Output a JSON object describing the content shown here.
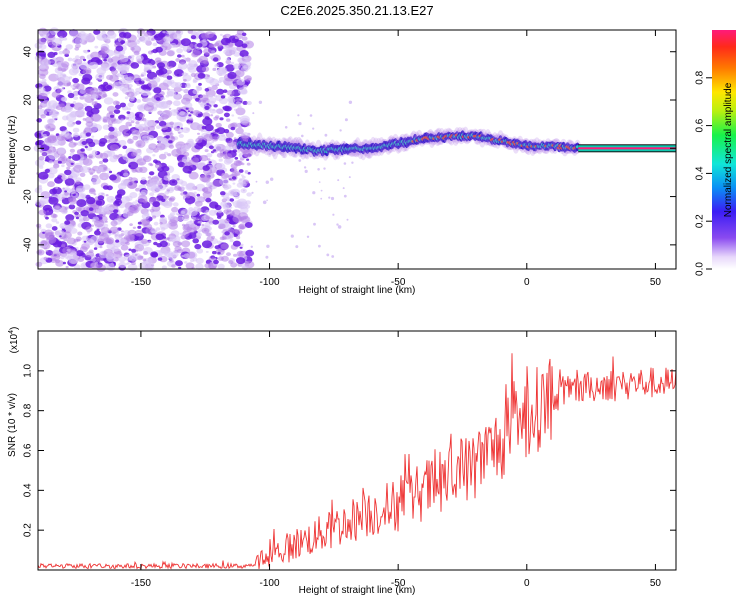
{
  "title": "C2E6.2025.350.21.13.E27",
  "colors": {
    "signal": "#ee3333",
    "hot": "#d84a3a",
    "ridge": "#2ec7c0",
    "spread": "#6a1be0",
    "noise": "#b27fe8"
  },
  "chart_data": [
    {
      "type": "heatmap",
      "title": "C2E6.2025.350.21.13.E27",
      "xlabel": "Height of straight line (km)",
      "ylabel": "Frequency (Hz)",
      "xlim": [
        -190,
        58
      ],
      "ylim": [
        -50,
        49
      ],
      "xticks": [
        -150,
        -100,
        -50,
        0,
        50
      ],
      "yticks": [
        -40,
        -20,
        0,
        20,
        40
      ],
      "colorbar": {
        "label": "Normalized spectral amplitude",
        "range": [
          0,
          1
        ],
        "ticks": [
          0.0,
          0.2,
          0.4,
          0.6,
          0.8
        ]
      },
      "noise_region_x": [
        -190,
        -110
      ],
      "ridge": {
        "x": [
          -112,
          -100,
          -90,
          -80,
          -70,
          -60,
          -50,
          -40,
          -30,
          -20,
          -10,
          0,
          10,
          20
        ],
        "freq": [
          2,
          1,
          0,
          -1,
          0,
          0,
          2,
          4,
          5,
          5,
          3,
          1,
          1,
          0
        ]
      },
      "steady_tone": {
        "x": [
          20,
          58
        ],
        "freq": 0
      }
    },
    {
      "type": "line",
      "xlabel": "Height of straight line (km)",
      "ylabel": "SNR (10 * v/v)",
      "y_multiplier": "(x10",
      "y_multiplier_exponent": "4",
      "y_multiplier_close": ")",
      "xlim": [
        -190,
        58
      ],
      "ylim": [
        0,
        1.2
      ],
      "xticks": [
        -150,
        -100,
        -50,
        0,
        50
      ],
      "yticks": [
        0.2,
        0.4,
        0.6,
        0.8,
        1.0
      ],
      "series": [
        {
          "name": "SNR",
          "x": [
            -190,
            -110,
            -105,
            -100,
            -90,
            -80,
            -70,
            -60,
            -50,
            -40,
            -30,
            -20,
            -10,
            0,
            5,
            10,
            20,
            30,
            40,
            58
          ],
          "values": [
            0.02,
            0.02,
            0.03,
            0.07,
            0.13,
            0.18,
            0.24,
            0.29,
            0.33,
            0.4,
            0.46,
            0.53,
            0.64,
            0.76,
            0.82,
            0.87,
            0.91,
            0.93,
            0.94,
            0.94
          ]
        }
      ]
    }
  ]
}
